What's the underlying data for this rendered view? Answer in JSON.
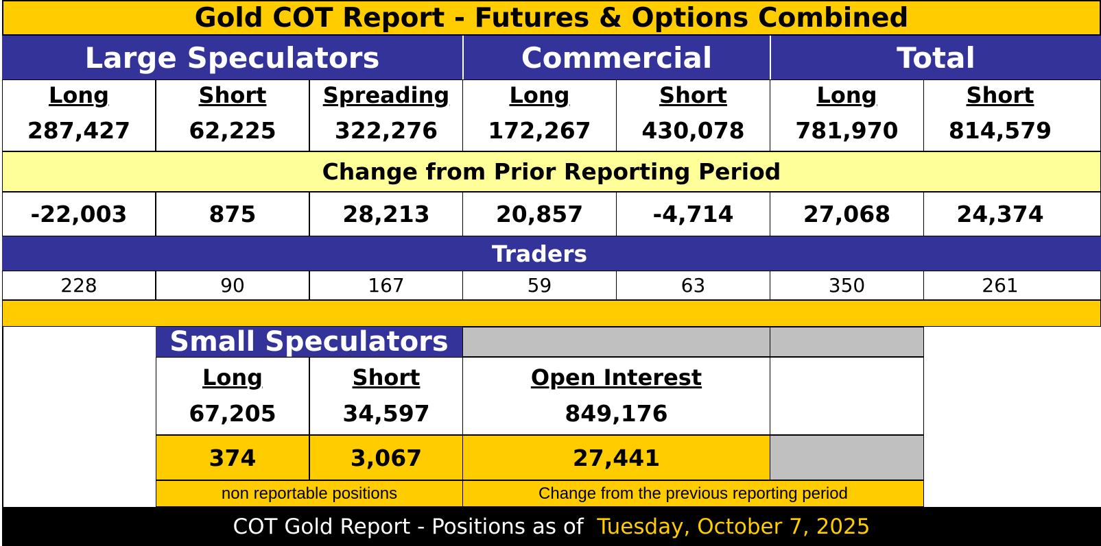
{
  "title": "Gold COT Report - Futures & Options Combined",
  "groups": {
    "large_speculators": "Large Speculators",
    "commercial": "Commercial",
    "total": "Total"
  },
  "columns": [
    {
      "label": "Long",
      "value": "287,427",
      "change": "-22,003",
      "traders": "228"
    },
    {
      "label": "Short",
      "value": "62,225",
      "change": "875",
      "traders": "90"
    },
    {
      "label": "Spreading",
      "value": "322,276",
      "change": "28,213",
      "traders": "167"
    },
    {
      "label": "Long",
      "value": "172,267",
      "change": "20,857",
      "traders": "59"
    },
    {
      "label": "Short",
      "value": "430,078",
      "change": "-4,714",
      "traders": "63"
    },
    {
      "label": "Long",
      "value": "781,970",
      "change": "27,068",
      "traders": "350"
    },
    {
      "label": "Short",
      "value": "814,579",
      "change": "24,374",
      "traders": "261"
    }
  ],
  "change_heading": "Change from Prior Reporting Period",
  "traders_heading": "Traders",
  "small_speculators": {
    "title": "Small Speculators",
    "long_label": "Long",
    "long_value": "67,205",
    "long_change": "374",
    "short_label": "Short",
    "short_value": "34,597",
    "short_change": "3,067",
    "note": "non reportable positions"
  },
  "open_interest": {
    "label": "Open Interest",
    "value": "849,176",
    "change": "27,441",
    "note": "Change from the previous reporting period"
  },
  "footer": {
    "prefix": "COT Gold Report - Positions as of  ",
    "date": "Tuesday, October 7, 2025"
  },
  "colors": {
    "gold": "#FFCC00",
    "navy": "#333399",
    "light_yellow": "#FFFF99",
    "gray": "#C0C0C0",
    "black": "#000000"
  }
}
